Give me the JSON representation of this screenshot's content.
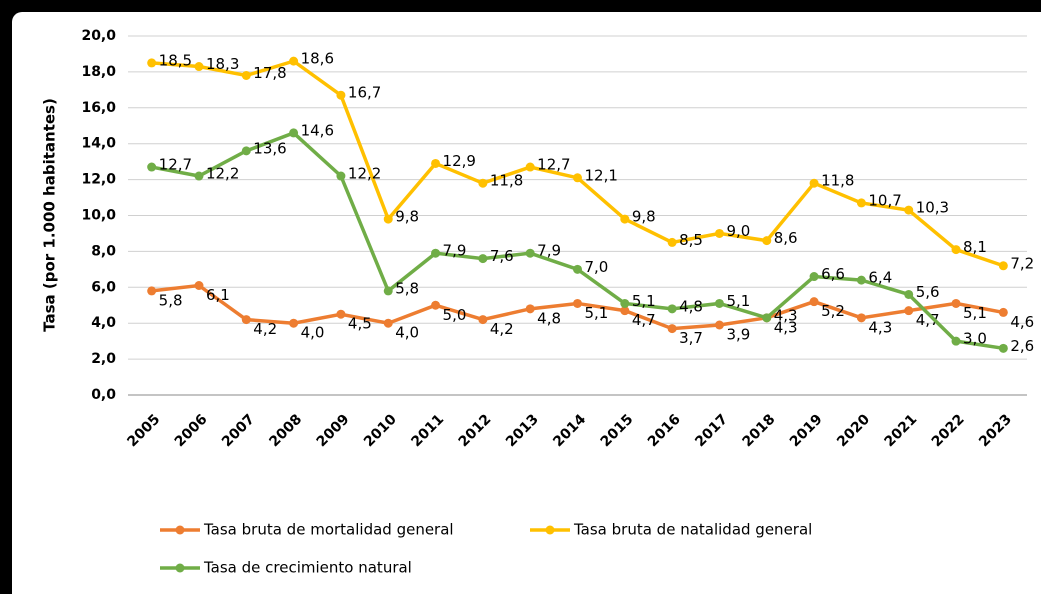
{
  "chart_data": {
    "type": "line",
    "y_label": "Tasa (por 1.000 habitantes)",
    "categories": [
      "2005",
      "2006",
      "2007",
      "2008",
      "2009",
      "2010",
      "2011",
      "2012",
      "2013",
      "2014",
      "2015",
      "2016",
      "2017",
      "2018",
      "2019",
      "2020",
      "2021",
      "2022",
      "2023"
    ],
    "series": [
      {
        "name": "Tasa bruta de mortalidad general",
        "color": "#ed7d31",
        "values": [
          5.8,
          6.1,
          4.2,
          4.0,
          4.5,
          4.0,
          5.0,
          4.2,
          4.8,
          5.1,
          4.7,
          3.7,
          3.9,
          4.3,
          5.2,
          4.3,
          4.7,
          5.1,
          4.6
        ],
        "value_labels": [
          "5,8",
          "6,1",
          "4,2",
          "4,0",
          "4,5",
          "4,0",
          "5,0",
          "4,2",
          "4,8",
          "5,1",
          "4,7",
          "3,7",
          "3,9",
          "4,3",
          "5,2",
          "4,3",
          "4,7",
          "5,1",
          "4,6"
        ]
      },
      {
        "name": "Tasa bruta de natalidad general",
        "color": "#ffc000",
        "values": [
          18.5,
          18.3,
          17.8,
          18.6,
          16.7,
          9.8,
          12.9,
          11.8,
          12.7,
          12.1,
          9.8,
          8.5,
          9.0,
          8.6,
          11.8,
          10.7,
          10.3,
          8.1,
          7.2
        ],
        "value_labels": [
          "18,5",
          "18,3",
          "17,8",
          "18,6",
          "16,7",
          "9,8",
          "12,9",
          "11,8",
          "12,7",
          "12,1",
          "9,8",
          "8,5",
          "9,0",
          "8,6",
          "11,8",
          "10,7",
          "10,3",
          "8,1",
          "7,2"
        ]
      },
      {
        "name": "Tasa de crecimiento natural",
        "color": "#70ad47",
        "values": [
          12.7,
          12.2,
          13.6,
          14.6,
          12.2,
          5.8,
          7.9,
          7.6,
          7.9,
          7.0,
          5.1,
          4.8,
          5.1,
          4.3,
          6.6,
          6.4,
          5.6,
          3.0,
          2.6
        ],
        "value_labels": [
          "12,7",
          "12,2",
          "13,6",
          "14,6",
          "12,2",
          "5,8",
          "7,9",
          "7,6",
          "7,9",
          "7,0",
          "5,1",
          "4,8",
          "5,1",
          "4,3",
          "6,6",
          "6,4",
          "5,6",
          "3,0",
          "2,6"
        ]
      }
    ],
    "ylim": [
      0,
      20
    ],
    "yticks": [
      {
        "value": 0,
        "label": "0,0"
      },
      {
        "value": 2,
        "label": "2,0"
      },
      {
        "value": 4,
        "label": "4,0"
      },
      {
        "value": 6,
        "label": "6,0"
      },
      {
        "value": 8,
        "label": "8,0"
      },
      {
        "value": 10,
        "label": "10,0"
      },
      {
        "value": 12,
        "label": "12,0"
      },
      {
        "value": 14,
        "label": "14,0"
      },
      {
        "value": 16,
        "label": "16,0"
      },
      {
        "value": 18,
        "label": "18,0"
      },
      {
        "value": 20,
        "label": "20,0"
      }
    ],
    "grid": true
  }
}
